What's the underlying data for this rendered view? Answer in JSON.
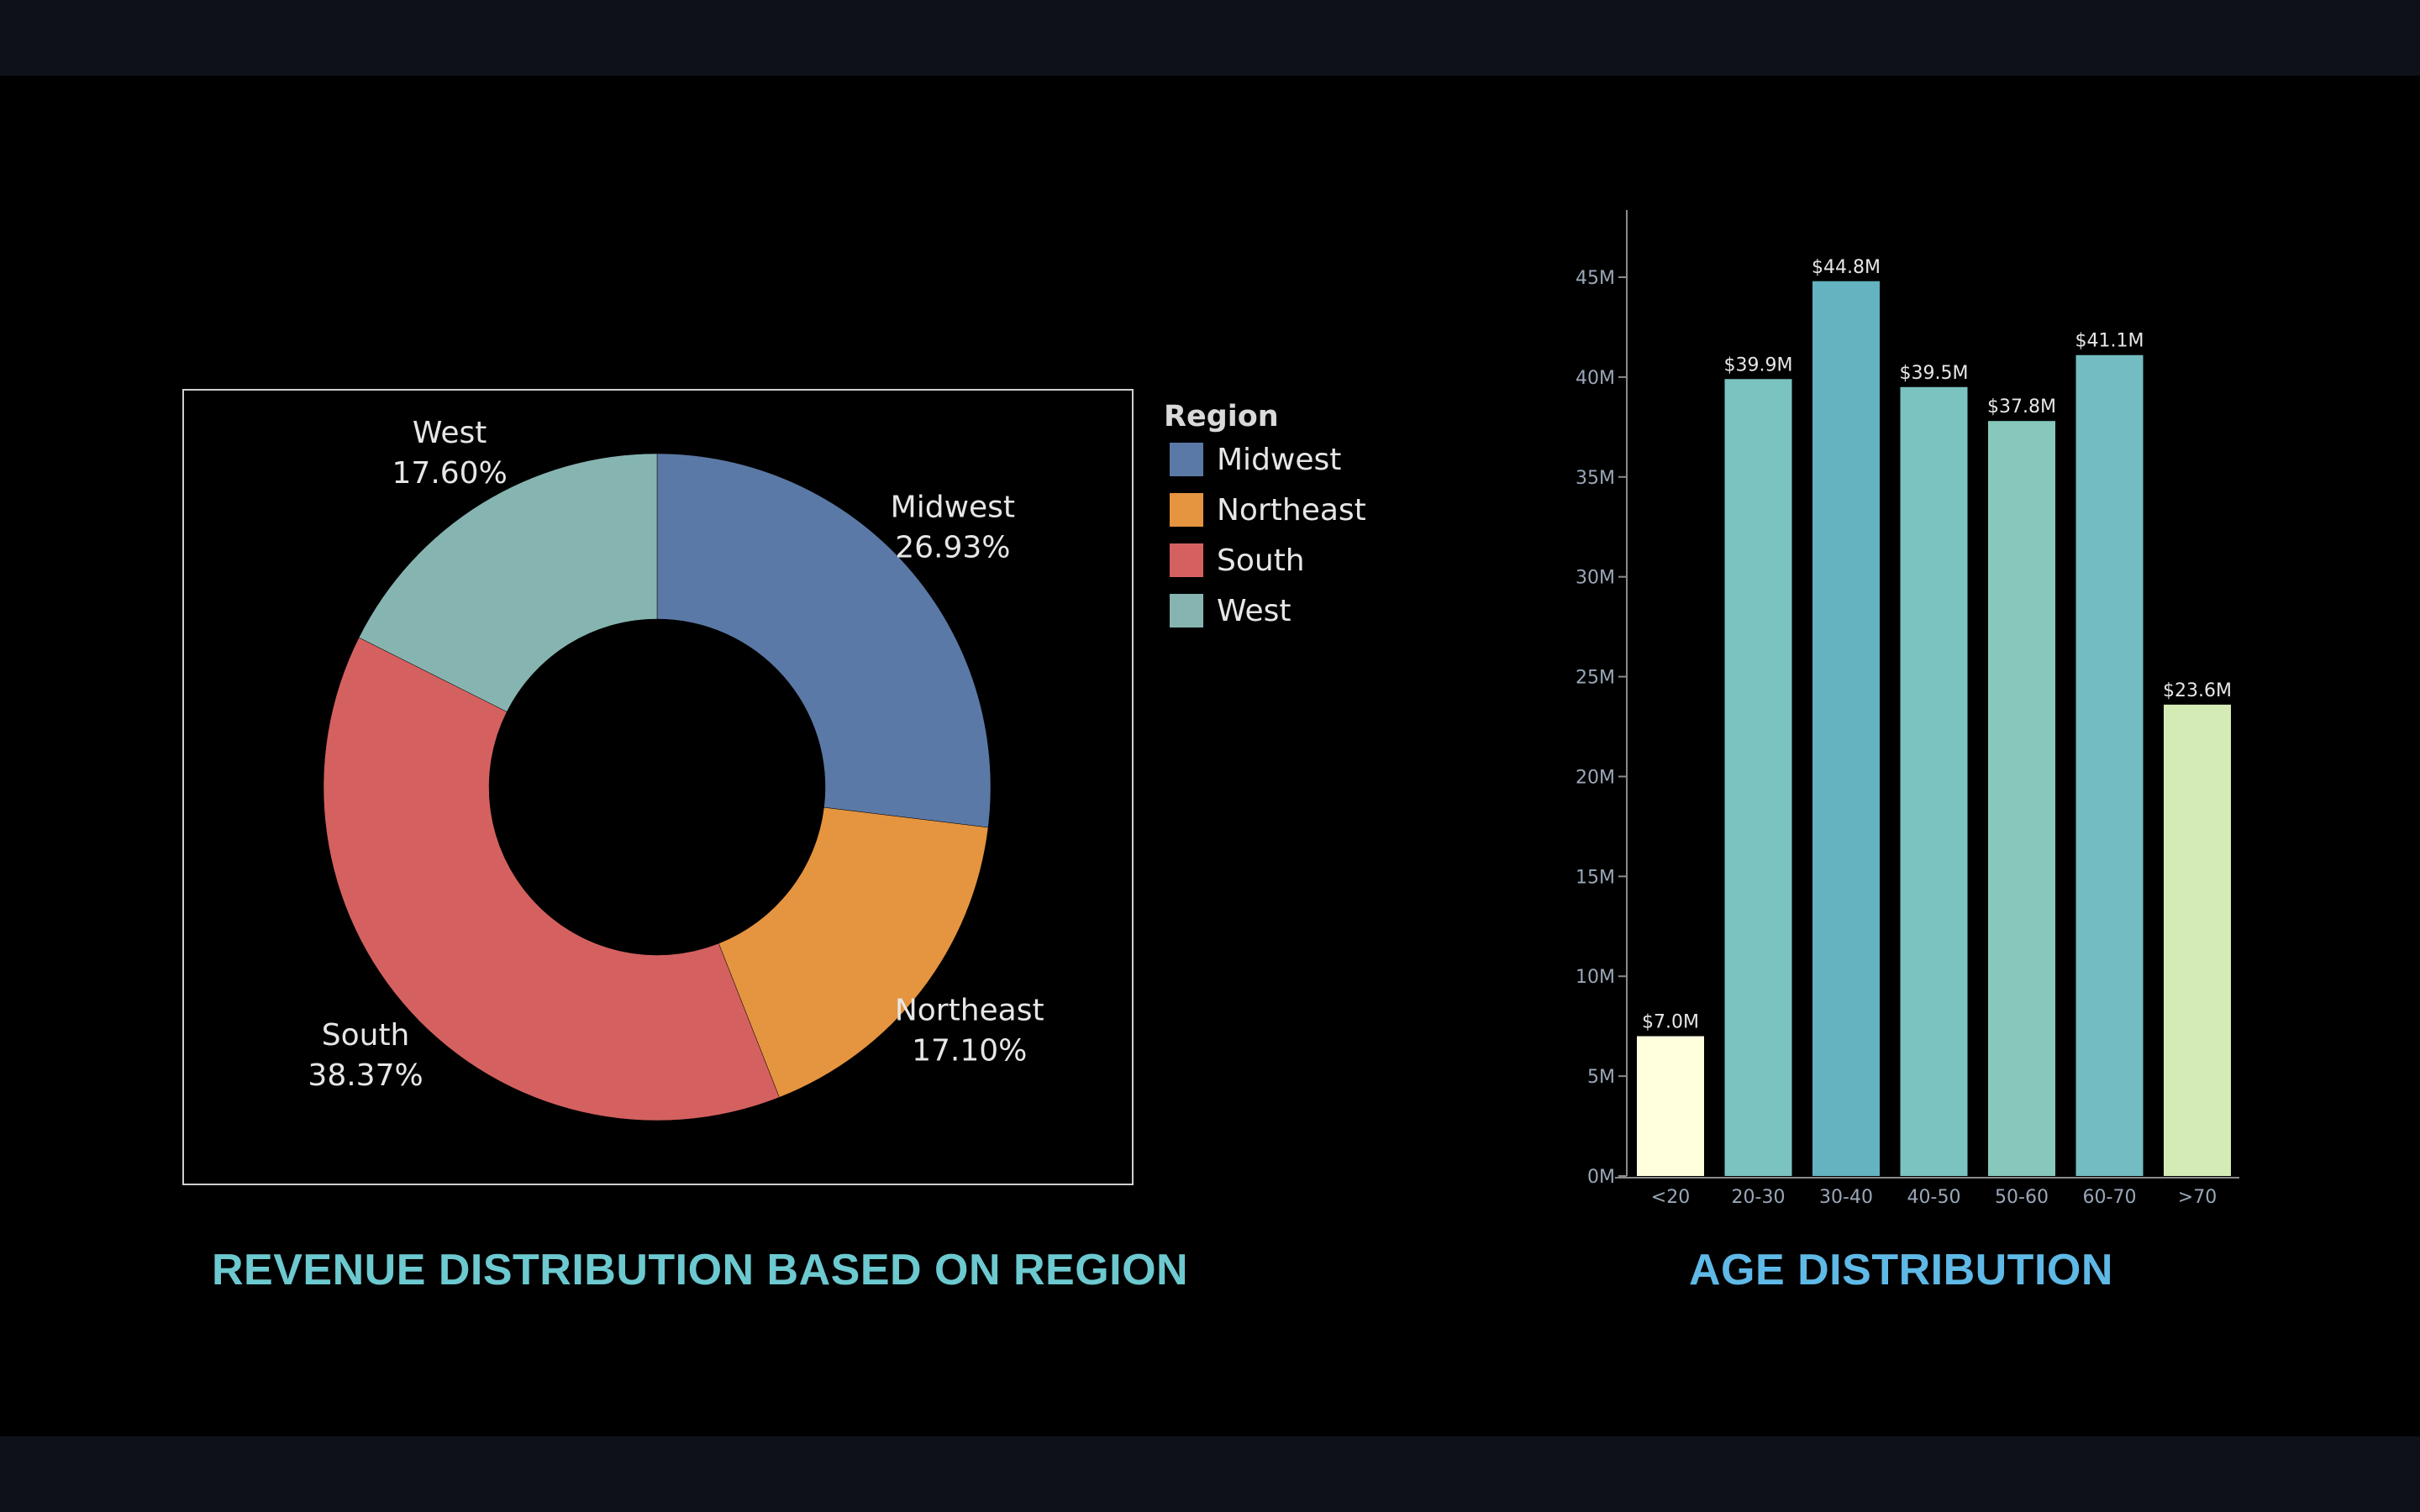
{
  "colors": {
    "background": "#000000",
    "frame_bars": "#0e1117",
    "left_title": "#6cc9cf",
    "right_title": "#5fb9e6",
    "axis": "#8a8a8a",
    "tick_text": "#9aa7b8",
    "label_text": "#e6e6e6"
  },
  "panels": {
    "left_title": "REVENUE DISTRIBUTION BASED ON REGION",
    "right_title": "AGE DISTRIBUTION"
  },
  "chart_data": [
    {
      "type": "pie",
      "subtype": "donut",
      "title": "REVENUE DISTRIBUTION BASED ON REGION",
      "legend_title": "Region",
      "legend_position": "right",
      "slices": [
        {
          "label": "Midwest",
          "value": 26.93,
          "value_label": "26.93%",
          "color": "#5b79a6"
        },
        {
          "label": "Northeast",
          "value": 17.1,
          "value_label": "17.10%",
          "color": "#e59440"
        },
        {
          "label": "South",
          "value": 38.37,
          "value_label": "38.37%",
          "color": "#d46160"
        },
        {
          "label": "West",
          "value": 17.6,
          "value_label": "17.60%",
          "color": "#86b5b1"
        }
      ]
    },
    {
      "type": "bar",
      "title": "AGE DISTRIBUTION",
      "categories": [
        "<20",
        "20-30",
        "30-40",
        "40-50",
        "50-60",
        "60-70",
        ">70"
      ],
      "values": [
        7.0,
        39.9,
        44.8,
        39.5,
        37.8,
        41.1,
        23.6
      ],
      "data_labels": [
        "$7.0M",
        "$39.9M",
        "$44.8M",
        "$39.5M",
        "$37.8M",
        "$41.1M",
        "$23.6M"
      ],
      "colors": [
        "#fffedd",
        "#7bc3c0",
        "#63b3c1",
        "#7bc3c0",
        "#87c8bc",
        "#73bcc1",
        "#d5ebb5"
      ],
      "y_ticks": [
        "0M",
        "5M",
        "10M",
        "15M",
        "20M",
        "25M",
        "30M",
        "35M",
        "40M",
        "45M"
      ],
      "ylim": [
        0,
        48
      ],
      "grid": false
    }
  ]
}
